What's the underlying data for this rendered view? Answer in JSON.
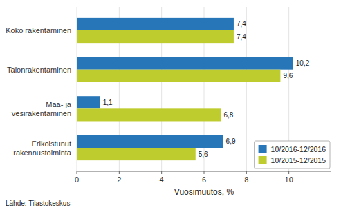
{
  "chart_data": {
    "type": "bar",
    "orientation": "horizontal",
    "categories": [
      "Erikoistunut rakennustoiminta",
      "Maa- ja vesirakentaminen",
      "Talonrakentaminen",
      "Koko rakentaminen"
    ],
    "series": [
      {
        "name": "10/2016-12/2016",
        "color": "#2776B8",
        "values": [
          6.9,
          1.1,
          10.2,
          7.4
        ],
        "value_labels": [
          "6,9",
          "1,1",
          "10,2",
          "7,4"
        ]
      },
      {
        "name": "10/2015-12/2015",
        "color": "#BFCC2E",
        "values": [
          5.6,
          6.8,
          9.6,
          7.4
        ],
        "value_labels": [
          "5,6",
          "6,8",
          "9,6",
          "7,4"
        ]
      }
    ],
    "xlabel": "Vuosimuutos, %",
    "xlim": [
      0,
      12.0
    ],
    "xticks": [
      0,
      2,
      4,
      6,
      8,
      10
    ],
    "grid": true,
    "legend": "lower right",
    "data_labels": true,
    "source": "Lähde: Tilastokeskus"
  }
}
